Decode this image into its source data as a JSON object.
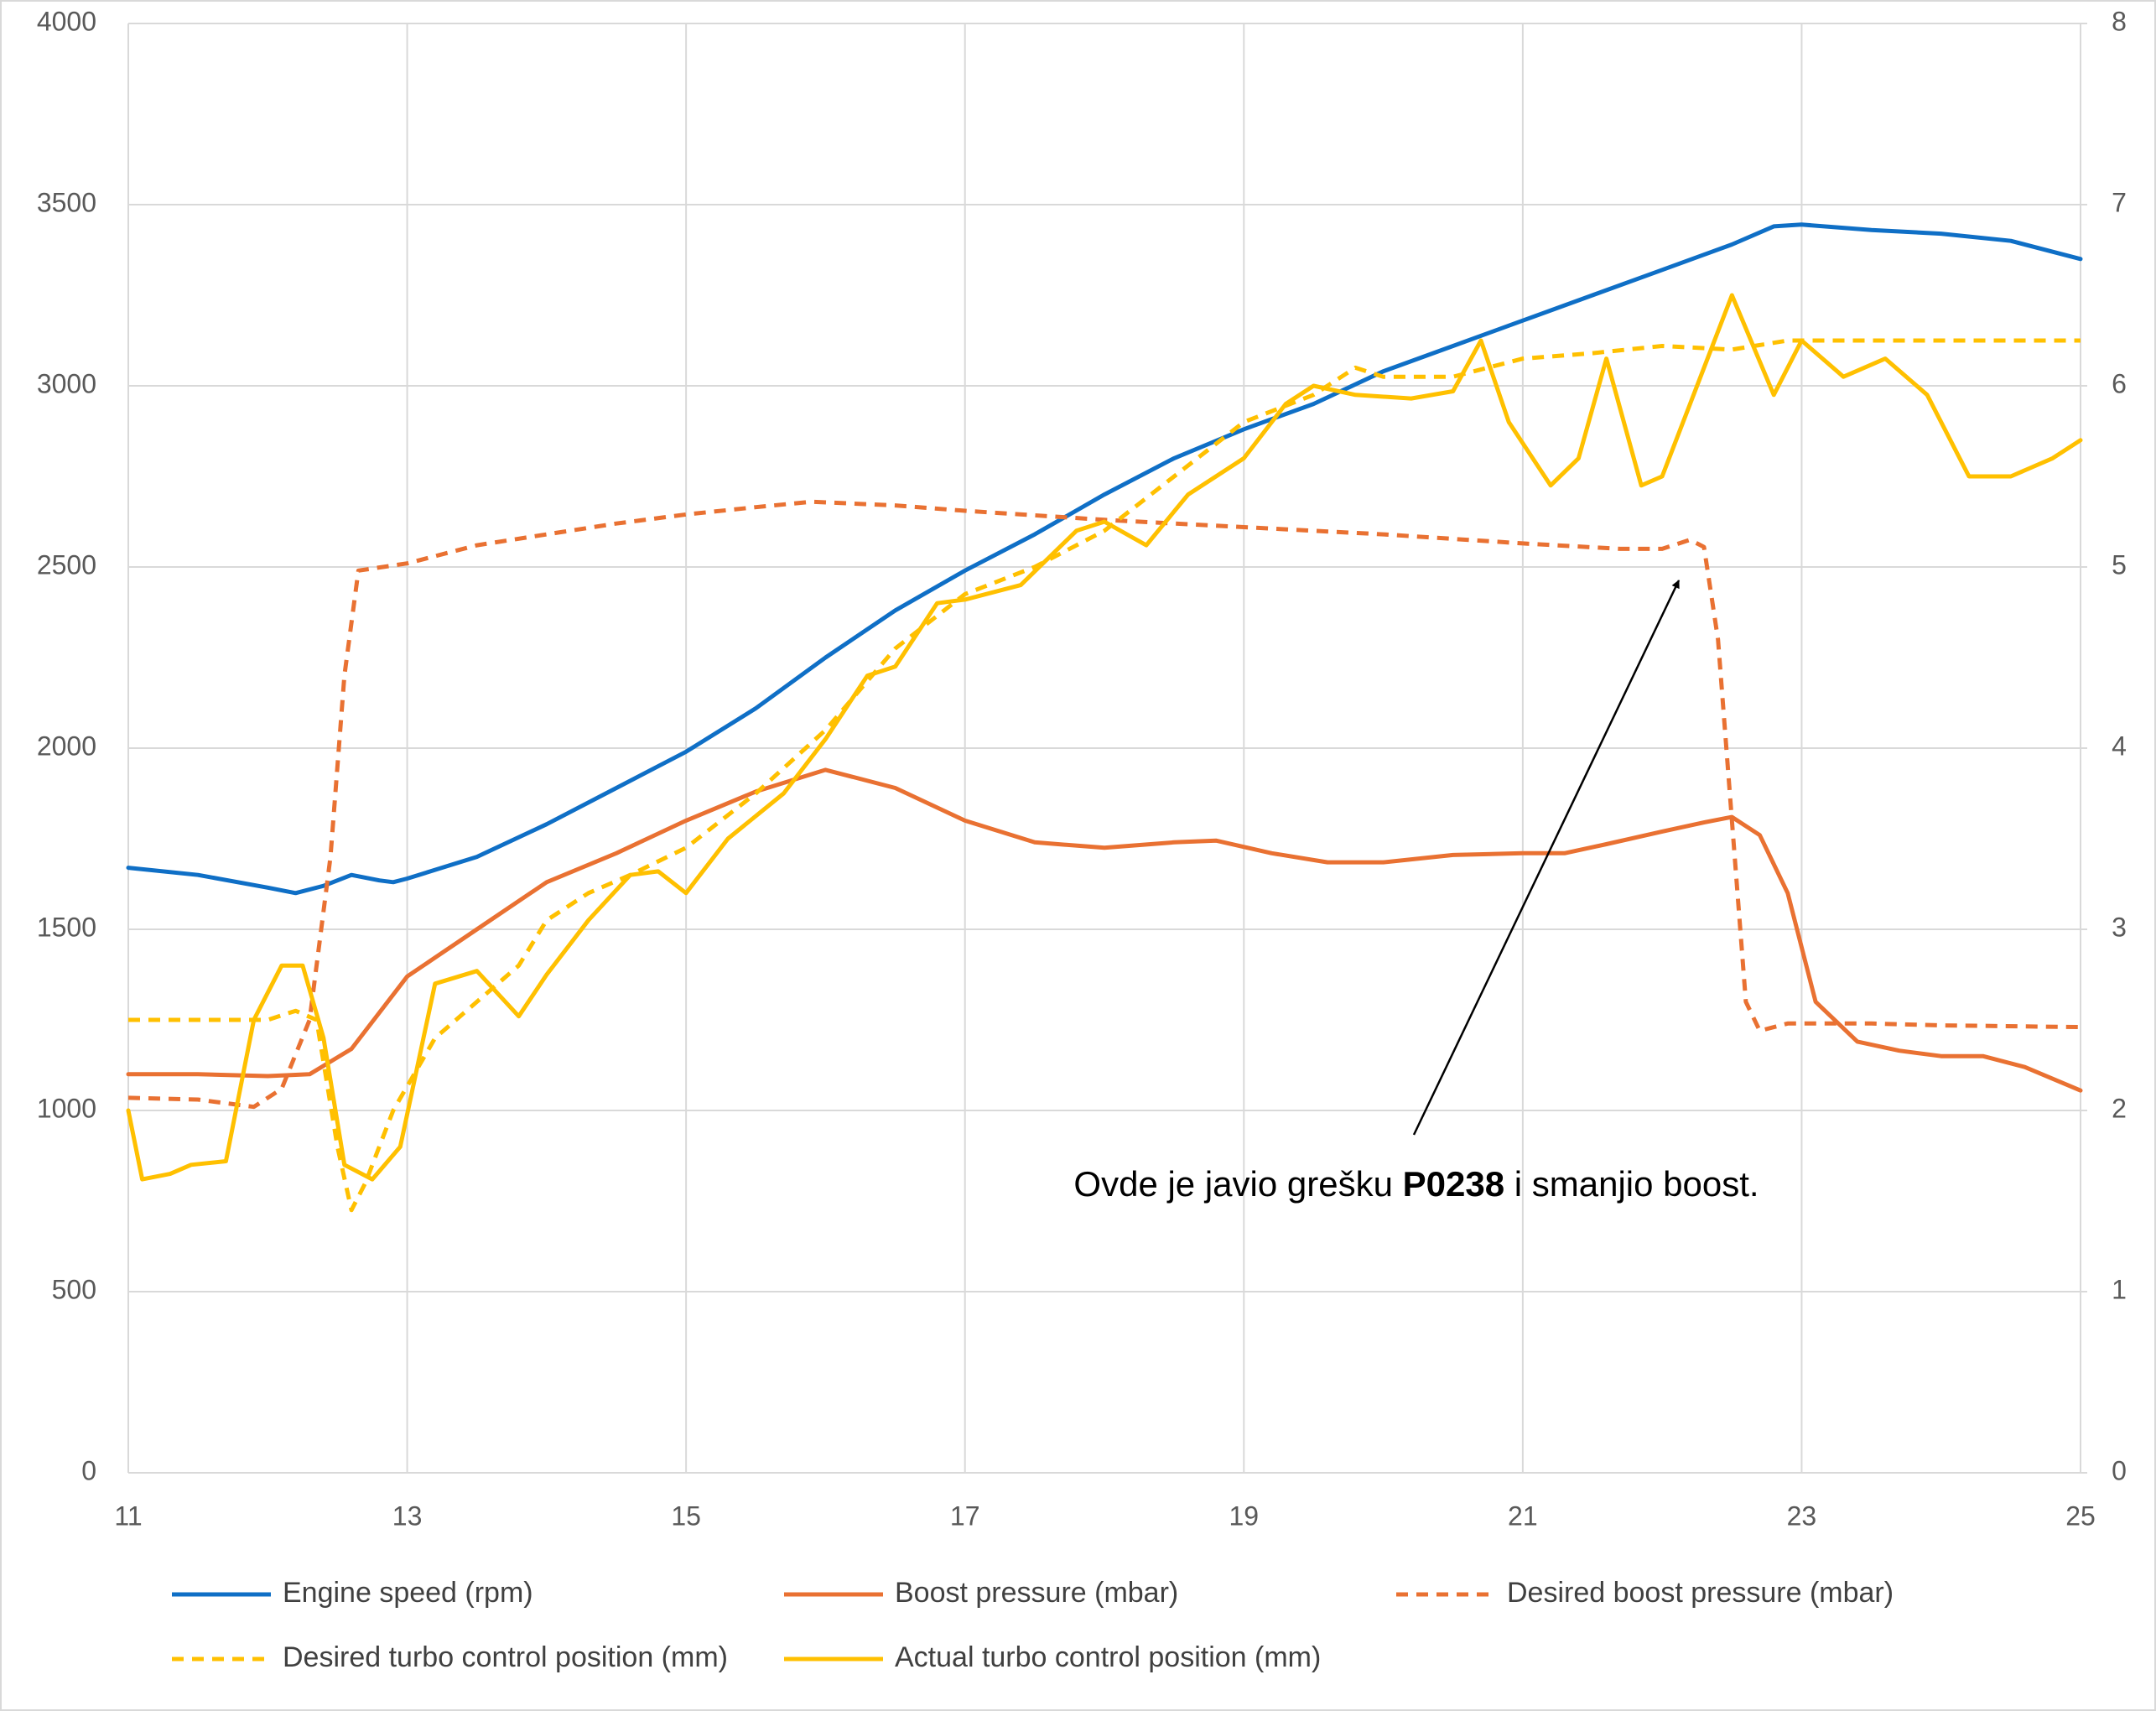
{
  "chart_data": {
    "type": "line",
    "xlim": [
      11,
      25
    ],
    "xticks": [
      11,
      13,
      15,
      17,
      19,
      21,
      23,
      25
    ],
    "ylim": [
      0,
      4000
    ],
    "yticks": [
      0,
      500,
      1000,
      1500,
      2000,
      2500,
      3000,
      3500,
      4000
    ],
    "y2lim": [
      0,
      8
    ],
    "y2ticks": [
      0,
      1,
      2,
      3,
      4,
      5,
      6,
      7,
      8
    ],
    "grid": true,
    "legend": "bottom",
    "annotation": {
      "before": "Ovde je javio grešku",
      "code": "P0238",
      "after": "i smanjio boost."
    },
    "series": [
      {
        "name": "Engine speed (rpm)",
        "color": "#0f6fc6",
        "dashed": false,
        "axis": "y",
        "x": [
          11,
          11.5,
          12,
          12.2,
          12.4,
          12.6,
          12.8,
          12.9,
          13,
          13.5,
          14,
          14.5,
          15,
          15.5,
          16,
          16.5,
          17,
          17.5,
          18,
          18.5,
          19,
          19.5,
          20,
          20.5,
          21,
          21.5,
          22,
          22.5,
          22.8,
          23,
          23.5,
          24,
          24.5,
          25
        ],
        "values": [
          1670,
          1650,
          1615,
          1600,
          1620,
          1650,
          1635,
          1630,
          1640,
          1700,
          1790,
          1890,
          1990,
          2110,
          2250,
          2380,
          2490,
          2590,
          2700,
          2800,
          2880,
          2950,
          3040,
          3110,
          3180,
          3250,
          3320,
          3390,
          3440,
          3445,
          3430,
          3420,
          3400,
          3350
        ]
      },
      {
        "name": "Boost pressure (mbar)",
        "color": "#e97132",
        "dashed": false,
        "axis": "y",
        "x": [
          11,
          11.5,
          12,
          12.3,
          12.6,
          13,
          13.5,
          14,
          14.5,
          15,
          15.5,
          16,
          16.5,
          17,
          17.5,
          18,
          18.5,
          18.8,
          19.2,
          19.6,
          20,
          20.5,
          21,
          21.3,
          21.6,
          22,
          22.3,
          22.5,
          22.7,
          22.9,
          23.1,
          23.4,
          23.7,
          24,
          24.3,
          24.6,
          25
        ],
        "values": [
          1100,
          1100,
          1095,
          1100,
          1170,
          1370,
          1500,
          1630,
          1710,
          1800,
          1880,
          1940,
          1890,
          1800,
          1740,
          1725,
          1740,
          1745,
          1710,
          1685,
          1685,
          1705,
          1710,
          1710,
          1735,
          1770,
          1795,
          1810,
          1760,
          1600,
          1300,
          1190,
          1165,
          1150,
          1150,
          1120,
          1055
        ]
      },
      {
        "name": "Desired boost pressure (mbar)",
        "color": "#e97132",
        "dashed": true,
        "axis": "y",
        "x": [
          11,
          11.5,
          11.9,
          12.1,
          12.3,
          12.45,
          12.55,
          12.65,
          13,
          13.5,
          14,
          14.5,
          15,
          15.5,
          15.9,
          16.5,
          17,
          18,
          19,
          20,
          21,
          21.7,
          22,
          22.2,
          22.3,
          22.4,
          22.5,
          22.6,
          22.7,
          22.9,
          23.5,
          24,
          25
        ],
        "values": [
          1035,
          1030,
          1010,
          1060,
          1250,
          1700,
          2200,
          2490,
          2510,
          2560,
          2590,
          2620,
          2645,
          2665,
          2680,
          2670,
          2655,
          2630,
          2610,
          2590,
          2565,
          2550,
          2550,
          2575,
          2555,
          2300,
          1800,
          1300,
          1220,
          1240,
          1240,
          1235,
          1230
        ]
      },
      {
        "name": "Desired turbo control position (mm)",
        "color": "#ffc000",
        "dashed": true,
        "axis": "y2",
        "x": [
          11,
          11.5,
          12,
          12.2,
          12.35,
          12.5,
          12.6,
          12.7,
          12.9,
          13.2,
          13.5,
          13.8,
          14,
          14.3,
          14.6,
          15,
          15.5,
          16,
          16.5,
          17,
          17.5,
          18,
          18.5,
          19,
          19.5,
          19.8,
          20,
          20.5,
          21,
          21.5,
          22,
          22.5,
          22.9,
          23.5,
          25
        ],
        "values": [
          2.5,
          2.5,
          2.5,
          2.55,
          2.5,
          1.8,
          1.45,
          1.6,
          2.0,
          2.4,
          2.6,
          2.8,
          3.05,
          3.2,
          3.3,
          3.45,
          3.75,
          4.1,
          4.55,
          4.85,
          5.0,
          5.2,
          5.5,
          5.8,
          5.95,
          6.1,
          6.05,
          6.05,
          6.15,
          6.18,
          6.22,
          6.2,
          6.25,
          6.25,
          6.25
        ]
      },
      {
        "name": "Actual turbo control position (mm)",
        "color": "#ffc000",
        "dashed": false,
        "axis": "y2",
        "x": [
          11,
          11.1,
          11.3,
          11.45,
          11.7,
          11.9,
          12.1,
          12.25,
          12.4,
          12.55,
          12.75,
          12.95,
          13.2,
          13.5,
          13.8,
          14,
          14.3,
          14.6,
          14.8,
          15,
          15.3,
          15.7,
          16,
          16.3,
          16.5,
          16.8,
          17,
          17.4,
          17.8,
          18,
          18.3,
          18.6,
          19,
          19.3,
          19.5,
          19.8,
          20.2,
          20.5,
          20.7,
          20.9,
          21.2,
          21.4,
          21.6,
          21.85,
          22,
          22.2,
          22.5,
          22.8,
          23,
          23.3,
          23.6,
          23.9,
          24.2,
          24.5,
          24.8,
          25
        ],
        "values": [
          2.0,
          1.62,
          1.65,
          1.7,
          1.72,
          2.5,
          2.8,
          2.8,
          2.4,
          1.7,
          1.62,
          1.8,
          2.7,
          2.77,
          2.52,
          2.75,
          3.05,
          3.3,
          3.32,
          3.2,
          3.5,
          3.75,
          4.05,
          4.4,
          4.45,
          4.8,
          4.82,
          4.9,
          5.2,
          5.25,
          5.12,
          5.4,
          5.6,
          5.9,
          6.0,
          5.95,
          5.93,
          5.97,
          6.25,
          5.8,
          5.45,
          5.6,
          6.15,
          5.45,
          5.5,
          5.9,
          6.5,
          5.95,
          6.25,
          6.05,
          6.15,
          5.95,
          5.5,
          5.5,
          5.6,
          5.7
        ]
      }
    ]
  }
}
